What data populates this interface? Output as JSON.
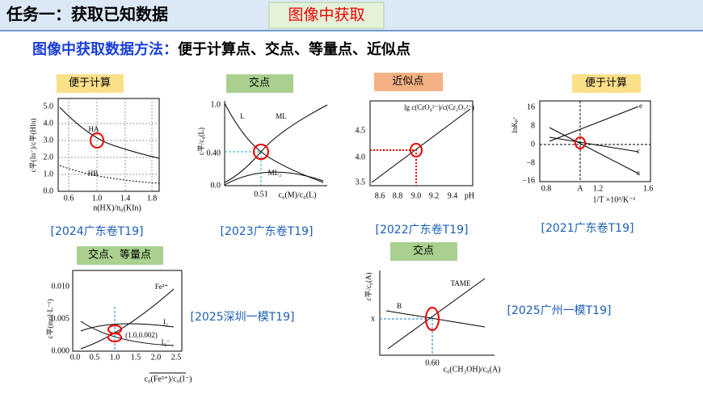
{
  "header": {
    "title": "任务一：获取已知数据",
    "tag": "图像中获取"
  },
  "subtitle": {
    "lead": "图像中获取数据方法：",
    "points": "便于计算点、交点、等量点、近似点"
  },
  "panels": [
    {
      "tag": "便于计算",
      "source": "[2024广东卷T19]",
      "y_label": "c平(In⁻)/c平(HIn)",
      "x_label": "n(HX)/n₀(KIn)",
      "yticks": [
        "5.0",
        "4.0",
        "3.0",
        "2.0",
        "1.0",
        "0.0"
      ],
      "xticks": [
        "0.6",
        "1.0",
        "1.4",
        "1.8"
      ],
      "labels": [
        "HA",
        "HB"
      ]
    },
    {
      "tag": "交点",
      "source": "[2023广东卷T19]",
      "y_label": "c平/c₀(L)",
      "x_label": "c₀(M)/c₀(L)",
      "yticks": [
        "1.0",
        "0.40",
        "0.0"
      ],
      "xticks": [
        "0.51"
      ],
      "labels": [
        "L",
        "ML",
        "ML₂"
      ]
    },
    {
      "tag": "近似点",
      "source": "[2022广东卷T19]",
      "y_label": "lg c(CrO₄²⁻)/c(Cr₂O₇²⁻)",
      "x_label": "pH",
      "yticks": [
        "4.5",
        "4.0",
        "3.5"
      ],
      "xticks": [
        "8.6",
        "8.8",
        "9.0",
        "9.2",
        "9.4"
      ],
      "labels": []
    },
    {
      "tag": "便于计算",
      "source": "[2021广东卷T19]",
      "y_label": "lnKₚʳ",
      "x_label": "1/T ×10³/K⁻¹",
      "yticks": [
        "16",
        "8",
        "0",
        "−8",
        "−16"
      ],
      "xticks": [
        "0.8",
        "A",
        "1.2",
        "1.6"
      ],
      "labels": [
        "e",
        "c",
        "a"
      ]
    },
    {
      "tag": "交点、等量点",
      "source": "[2025深圳一模T19]",
      "y_label": "c平(mol·L⁻¹)",
      "x_label": "c₀(Fe³⁺)/c₀(I⁻)",
      "yticks": [
        "0.010",
        "0.005",
        "0.000"
      ],
      "xticks": [
        "0.0",
        "0.5",
        "1.0",
        "1.5",
        "2.0",
        "2.5"
      ],
      "labels": [
        "Fe³⁺",
        "I₂",
        "I₃⁻",
        "(1.0,0.002)"
      ]
    },
    {
      "tag": "交点",
      "source": "[2025广州一模T19]",
      "y_label": "c平/c₀(A)",
      "x_label": "c₀(CH₃OH)/c₀(A)",
      "yticks": [
        "x"
      ],
      "xticks": [
        "0.60"
      ],
      "labels": [
        "TAME",
        "B"
      ]
    }
  ]
}
